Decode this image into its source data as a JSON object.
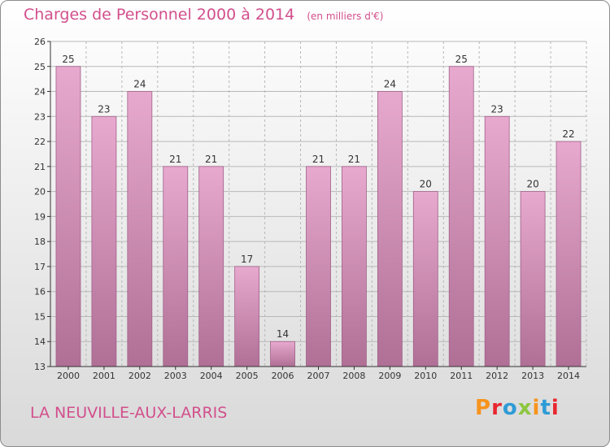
{
  "header": {
    "title": "Charges de Personnel 2000 à 2014",
    "unit": "(en milliers d'€)"
  },
  "footer": {
    "commune": "LA NEUVILLE-AUX-LARRIS",
    "logo": "Proxiti",
    "logo_colors": [
      "#f7941d",
      "#e9262e",
      "#2f9bd6",
      "#8dc63f",
      "#f7941d",
      "#2f9bd6",
      "#e9262e"
    ]
  },
  "colors": {
    "bar_top": "#e8a9cf",
    "bar_bottom": "#b07096",
    "bar_edge": "#a06088",
    "title": "#d24f8c",
    "axis": "#333333"
  },
  "chart_data": {
    "type": "bar",
    "title": "Charges de Personnel 2000 à 2014",
    "subtitle": "(en milliers d'€)",
    "xlabel": "",
    "ylabel": "",
    "categories": [
      "2000",
      "2001",
      "2002",
      "2003",
      "2004",
      "2005",
      "2006",
      "2007",
      "2008",
      "2009",
      "2010",
      "2011",
      "2012",
      "2013",
      "2014"
    ],
    "values": [
      25,
      23,
      24,
      21,
      21,
      17,
      14,
      21,
      21,
      24,
      20,
      25,
      23,
      20,
      22
    ],
    "ylim": [
      13,
      26
    ],
    "yticks": [
      13,
      14,
      15,
      16,
      17,
      18,
      19,
      20,
      21,
      22,
      23,
      24,
      25,
      26
    ],
    "grid": true,
    "data_labels": true
  }
}
